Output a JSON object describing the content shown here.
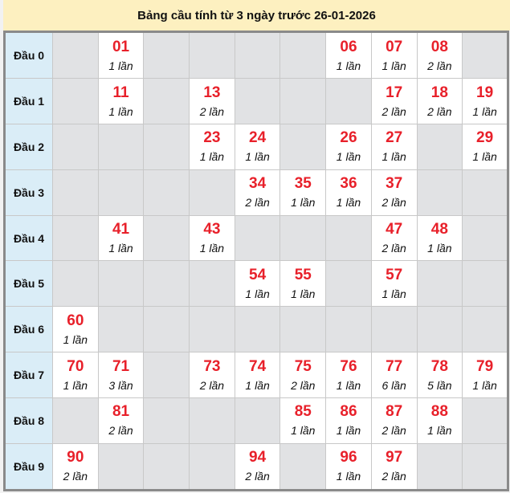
{
  "title": "Bảng cầu tính từ 3 ngày trước 26-01-2026",
  "colors": {
    "number": "#e8202a",
    "header_bg": "#fdf0c0",
    "row_head_bg": "#daedf7",
    "empty_cell": "#e1e2e4"
  },
  "rows": [
    {
      "label": "Đầu 0",
      "cells": [
        null,
        {
          "num": "01",
          "count": "1 lần"
        },
        null,
        null,
        null,
        null,
        {
          "num": "06",
          "count": "1 lần"
        },
        {
          "num": "07",
          "count": "1 lần"
        },
        {
          "num": "08",
          "count": "2 lần"
        },
        null
      ]
    },
    {
      "label": "Đầu 1",
      "cells": [
        null,
        {
          "num": "11",
          "count": "1 lần"
        },
        null,
        {
          "num": "13",
          "count": "2 lần"
        },
        null,
        null,
        null,
        {
          "num": "17",
          "count": "2 lần"
        },
        {
          "num": "18",
          "count": "2 lần"
        },
        {
          "num": "19",
          "count": "1 lần"
        }
      ]
    },
    {
      "label": "Đầu 2",
      "cells": [
        null,
        null,
        null,
        {
          "num": "23",
          "count": "1 lần"
        },
        {
          "num": "24",
          "count": "1 lần"
        },
        null,
        {
          "num": "26",
          "count": "1 lần"
        },
        {
          "num": "27",
          "count": "1 lần"
        },
        null,
        {
          "num": "29",
          "count": "1 lần"
        }
      ]
    },
    {
      "label": "Đầu 3",
      "cells": [
        null,
        null,
        null,
        null,
        {
          "num": "34",
          "count": "2 lần"
        },
        {
          "num": "35",
          "count": "1 lần"
        },
        {
          "num": "36",
          "count": "1 lần"
        },
        {
          "num": "37",
          "count": "2 lần"
        },
        null,
        null
      ]
    },
    {
      "label": "Đầu 4",
      "cells": [
        null,
        {
          "num": "41",
          "count": "1 lần"
        },
        null,
        {
          "num": "43",
          "count": "1 lần"
        },
        null,
        null,
        null,
        {
          "num": "47",
          "count": "2 lần"
        },
        {
          "num": "48",
          "count": "1 lần"
        },
        null
      ]
    },
    {
      "label": "Đầu 5",
      "cells": [
        null,
        null,
        null,
        null,
        {
          "num": "54",
          "count": "1 lần"
        },
        {
          "num": "55",
          "count": "1 lần"
        },
        null,
        {
          "num": "57",
          "count": "1 lần"
        },
        null,
        null
      ]
    },
    {
      "label": "Đầu 6",
      "cells": [
        {
          "num": "60",
          "count": "1 lần"
        },
        null,
        null,
        null,
        null,
        null,
        null,
        null,
        null,
        null
      ]
    },
    {
      "label": "Đầu 7",
      "cells": [
        {
          "num": "70",
          "count": "1 lần"
        },
        {
          "num": "71",
          "count": "3 lần"
        },
        null,
        {
          "num": "73",
          "count": "2 lần"
        },
        {
          "num": "74",
          "count": "1 lần"
        },
        {
          "num": "75",
          "count": "2 lần"
        },
        {
          "num": "76",
          "count": "1 lần"
        },
        {
          "num": "77",
          "count": "6 lần"
        },
        {
          "num": "78",
          "count": "5 lần"
        },
        {
          "num": "79",
          "count": "1 lần"
        }
      ]
    },
    {
      "label": "Đầu 8",
      "cells": [
        null,
        {
          "num": "81",
          "count": "2 lần"
        },
        null,
        null,
        null,
        {
          "num": "85",
          "count": "1 lần"
        },
        {
          "num": "86",
          "count": "1 lần"
        },
        {
          "num": "87",
          "count": "2 lần"
        },
        {
          "num": "88",
          "count": "1 lần"
        },
        null
      ]
    },
    {
      "label": "Đầu 9",
      "cells": [
        {
          "num": "90",
          "count": "2 lần"
        },
        null,
        null,
        null,
        {
          "num": "94",
          "count": "2 lần"
        },
        null,
        {
          "num": "96",
          "count": "1 lần"
        },
        {
          "num": "97",
          "count": "2 lần"
        },
        null,
        null
      ]
    }
  ]
}
